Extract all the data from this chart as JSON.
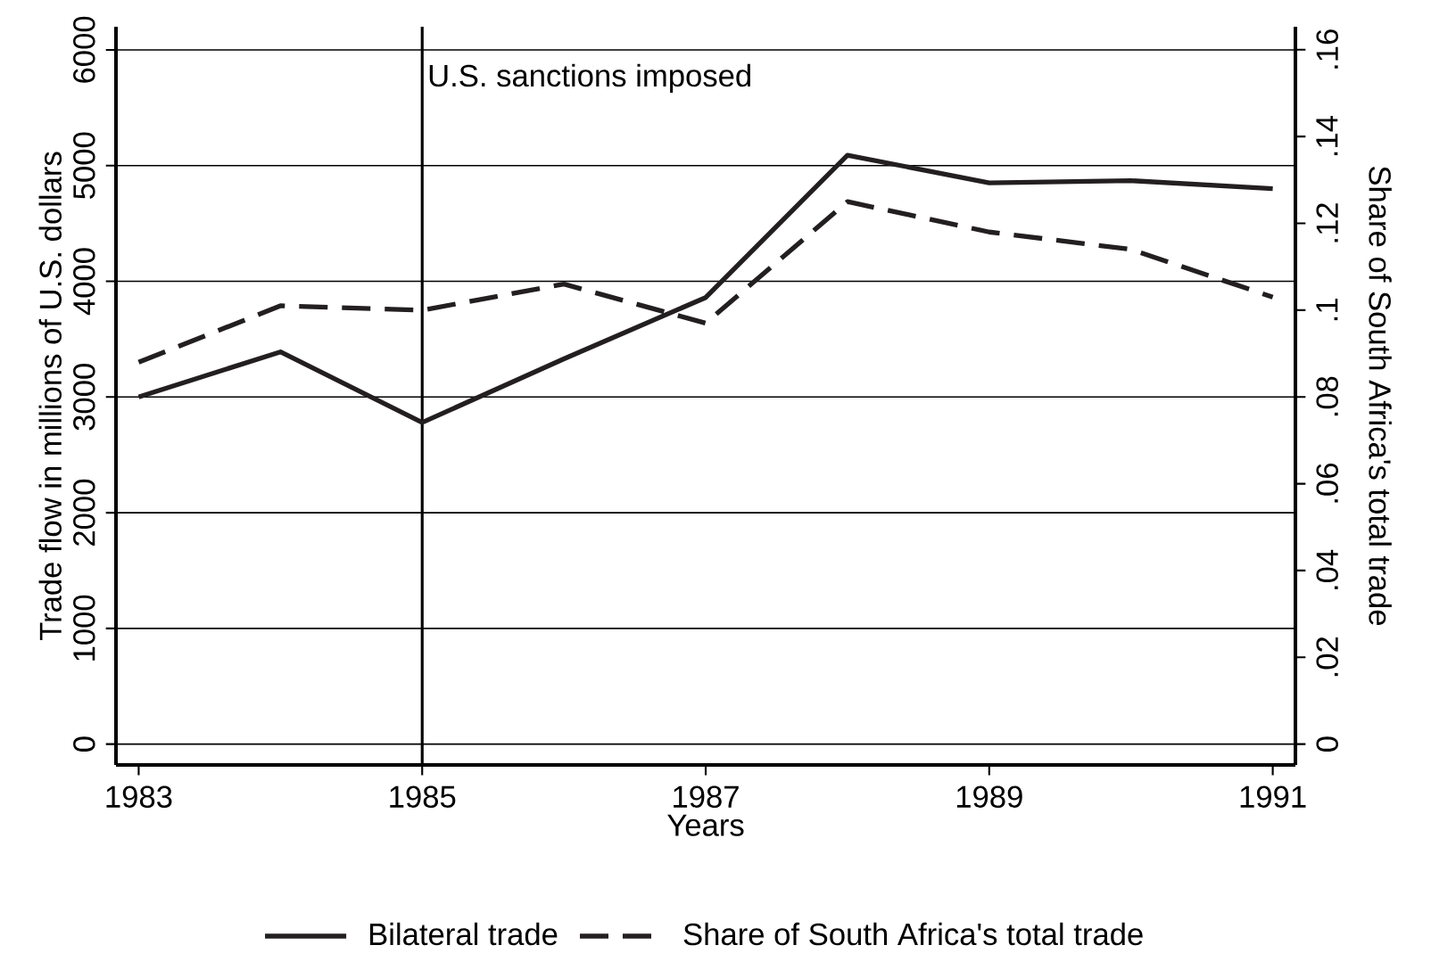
{
  "chart_data": {
    "type": "line",
    "xlabel": "Years",
    "ylabel": "Trade flow in millions of U.S. dollars",
    "y2label": "Share of South Africa's total trade",
    "x": [
      1983,
      1984,
      1985,
      1986,
      1987,
      1988,
      1989,
      1990,
      1991
    ],
    "series": [
      {
        "name": "Bilateral trade",
        "color": "#231f20",
        "line_style": "solid",
        "values": [
          3000,
          3390,
          2780,
          3330,
          3860,
          5090,
          4850,
          4870,
          4800
        ]
      },
      {
        "name": "Share of South Africa's total trade",
        "color": "#231f20",
        "line_style": "dashed",
        "axis": "y2",
        "values": [
          0.088,
          0.101,
          0.1,
          0.106,
          0.097,
          0.125,
          0.118,
          0.114,
          0.103
        ]
      }
    ],
    "xlim": [
      1982.84,
      1991.16
    ],
    "xticks": [
      1983,
      1985,
      1987,
      1989,
      1991
    ],
    "ylim": [
      -180,
      6200
    ],
    "yticks": [
      0,
      1000,
      2000,
      3000,
      4000,
      5000,
      6000
    ],
    "y2lim": [
      -0.0048,
      0.1653
    ],
    "y2ticks": [
      0,
      {
        "value": 0.02,
        "label": ".02"
      },
      {
        "value": 0.04,
        "label": ".04"
      },
      {
        "value": 0.06,
        "label": ".06"
      },
      {
        "value": 0.08,
        "label": ".08"
      },
      {
        "value": 0.1,
        "label": ".1"
      },
      {
        "value": 0.12,
        "label": ".12"
      },
      {
        "value": 0.14,
        "label": ".14"
      },
      {
        "value": 0.16,
        "label": ".16"
      }
    ],
    "ref_lines": [
      {
        "axis": "x",
        "value": 1985,
        "label": "U.S. sanctions imposed"
      }
    ],
    "grid": "y",
    "legend": "bottom",
    "marker": "none"
  }
}
